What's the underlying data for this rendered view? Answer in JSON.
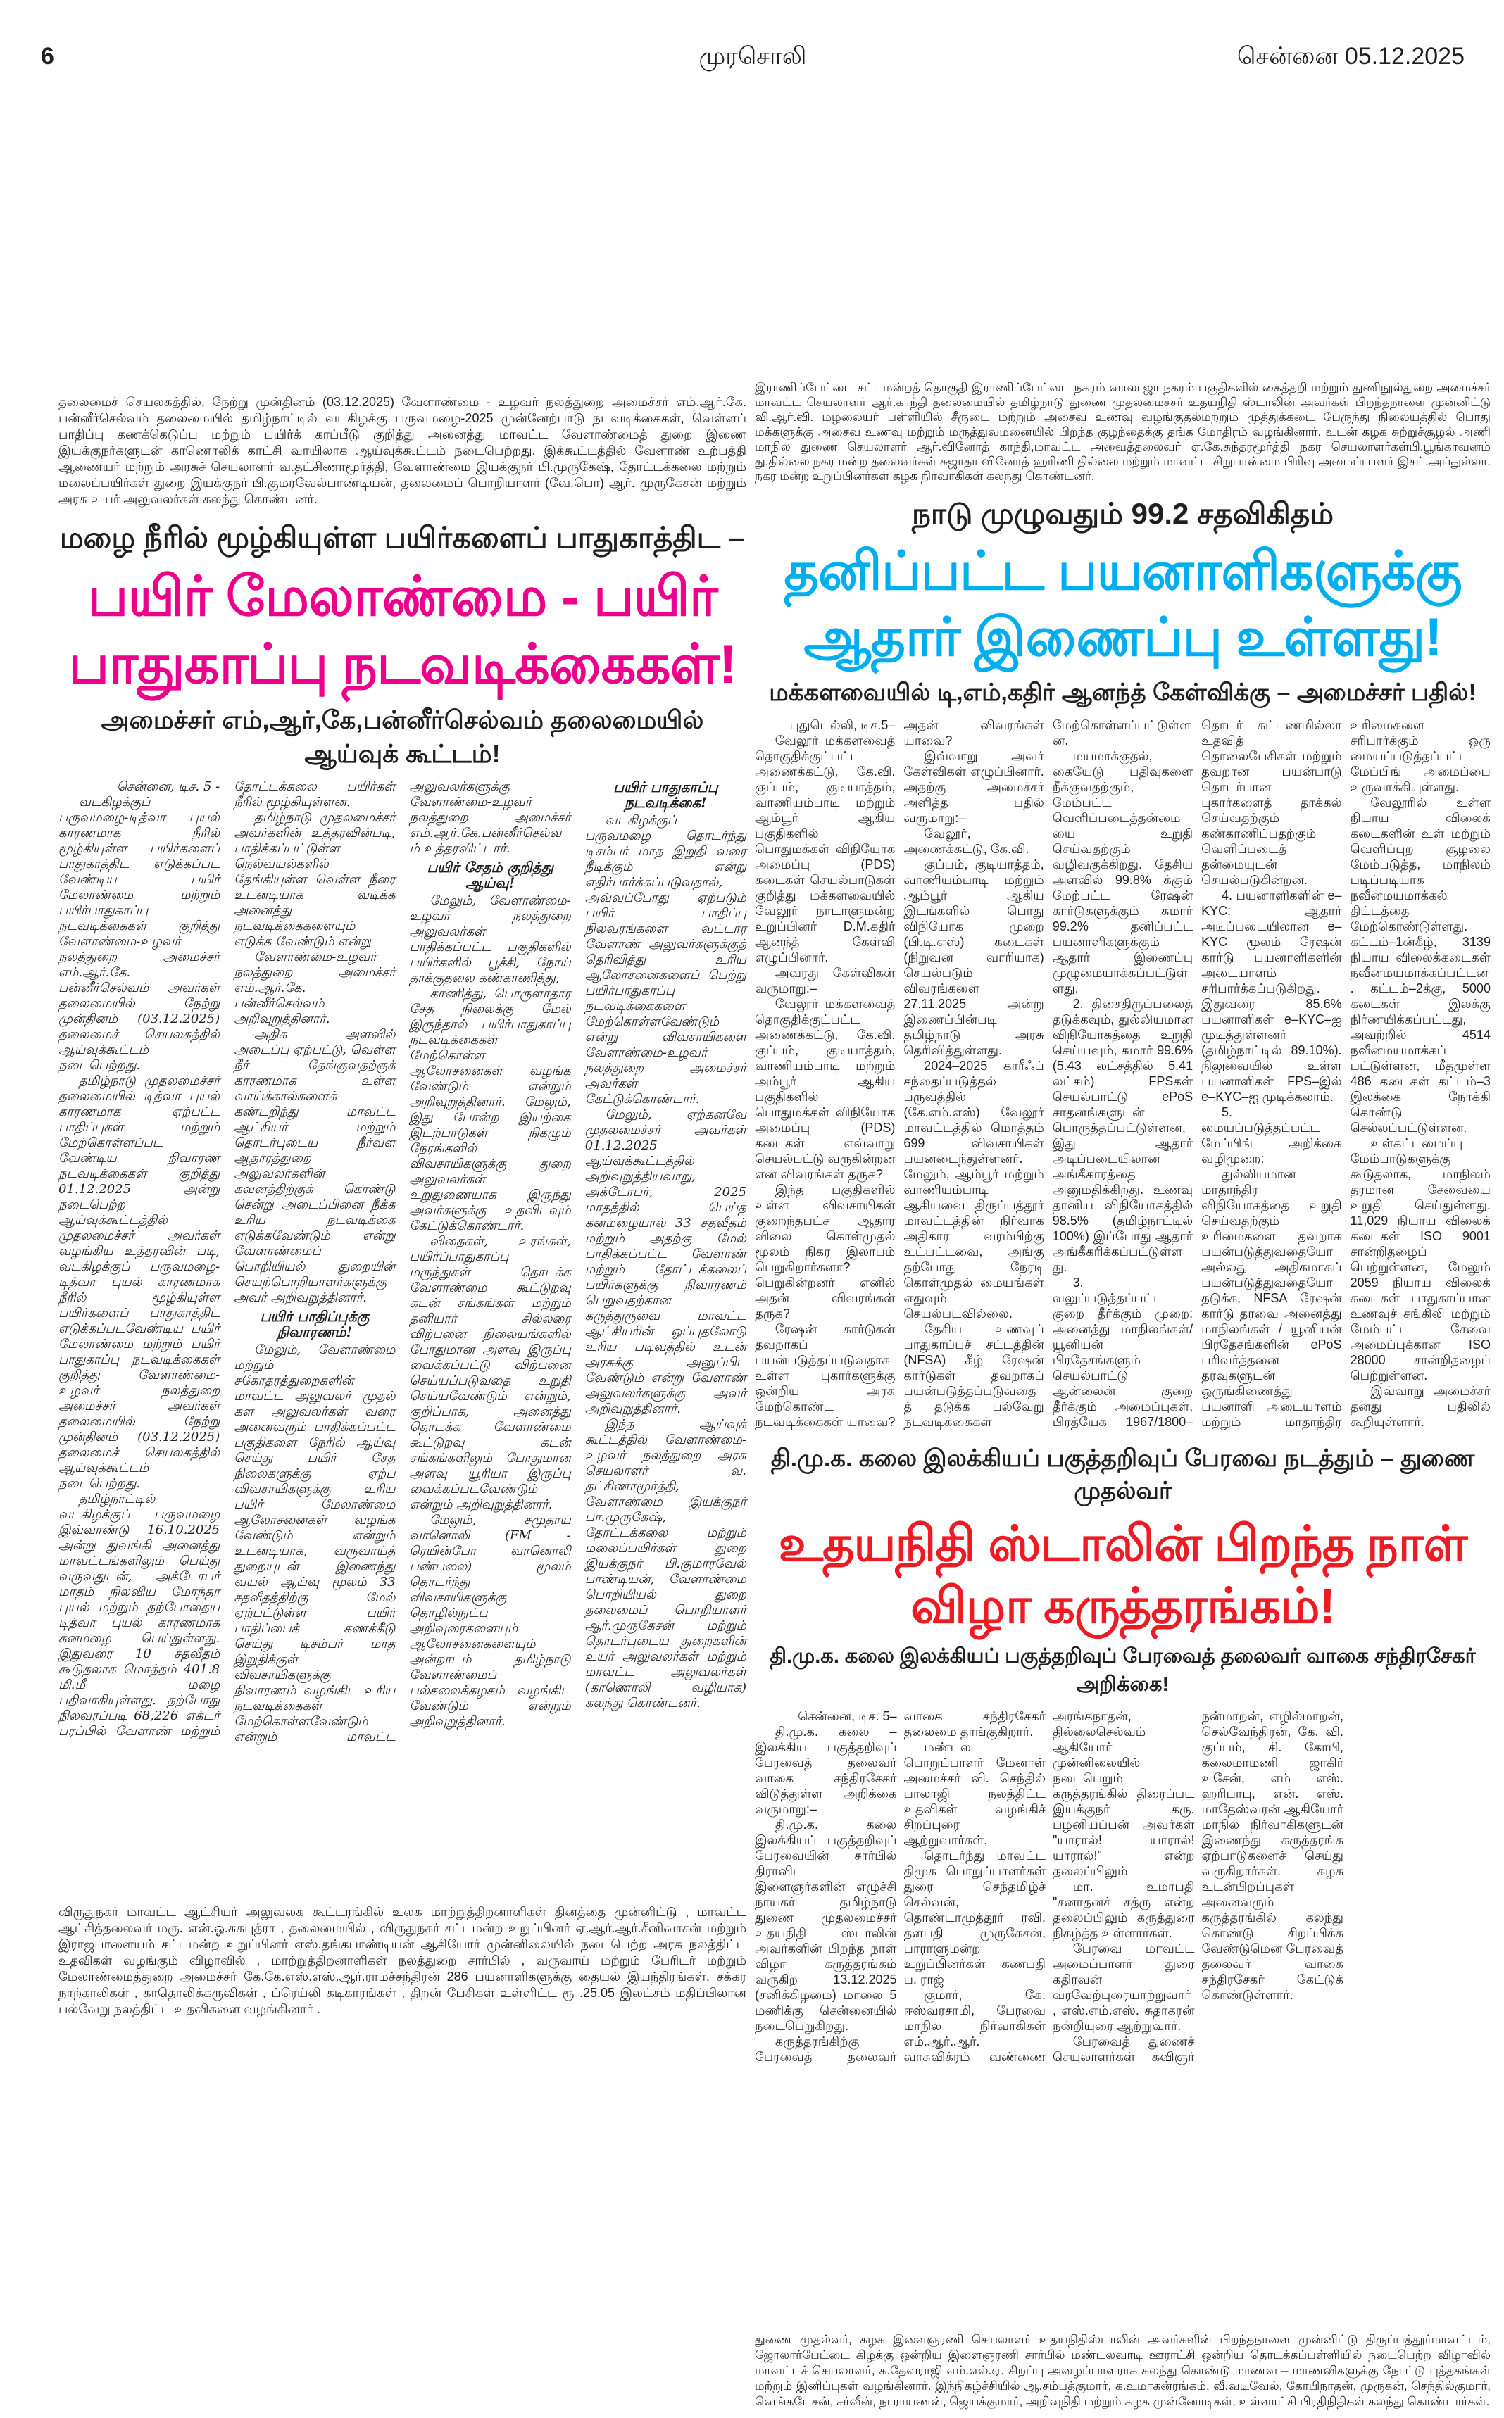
{
  "masthead": {
    "page_number": "6",
    "paper_name": "முரசொலி",
    "city": "சென்னை",
    "date": "05.12.2025"
  },
  "colors": {
    "pink": "#ec008c",
    "blue": "#00aeef",
    "red": "#ed1c24",
    "text": "#231f20"
  },
  "left_top_caption": "தலைமைச் செயலகத்தில், நேற்று முன்தினம் (03.12.2025) வேளாண்மை - உழவர் நலத்துறை அமைச்சர் எம்.ஆர்.கே. பன்னீர்செல்வம் தலைமையில் தமிழ்நாட்டில் வடகிழக்கு பருவமழை-2025 முன்னேற்பாடு நடவடிக்கைகள், வெள்ளப் பாதிப்பு கணக்கெடுப்பு மற்றும் பயிர்க் காப்பீடு குறித்து அனைத்து மாவட்ட வேளாண்மைத் துறை இணை இயக்குநர்களுடன் காணொலிக் காட்சி வாயிலாக ஆய்வுக்கூட்டம் நடைபெற்றது. இக்கூட்டத்தில் வேளாண் உற்பத்தி ஆணையர் மற்றும் அரசுச் செயலாளர் வ.தட்சிணாமூர்த்தி, வேளாண்மை இயக்குநர் பி.முருகேஷ், தோட்டக்கலை மற்றும் மலைப்பயிர்கள் துறை இயக்குநர் பி.குமரவேல்பாண்டியன், தலைமைப் பொறியாளர் (வே.பொ) ஆர். முருகேசன் மற்றும் அரசு உயர் அலுவலர்கள் கலந்து கொண்டனர்.",
  "left_article": {
    "kicker": "மழை நீரில் மூழ்கியுள்ள பயிர்களைப் பாதுகாத்திட –",
    "headline": "பயிர் மேலாண்மை - பயிர் பாதுகாப்பு நடவடிக்கைகள்!",
    "subhead": "அமைச்சர் எம்,ஆர்,கே,பன்னீர்செல்வம் தலைமையில் ஆய்வுக் கூட்டம்!",
    "dateline": "சென்னை, டிச. 5 -",
    "columns": [
      [
        "வடகிழக்குப் பருவமழை-டித்வா புயல் காரணமாக நீரில் மூழ்கியுள்ள பயிர்களைப் பாதுகாத்திட எடுக்கப்பட வேண்டிய பயிர் மேலாண்மை மற்றும் பயிர்பாதுகாப்பு நடவடிக்கைகள் குறித்து வேளாண்மை-உழவர் நலத்துறை அமைச்சர் எம்.ஆர்.கே. பன்னீர்செல்வம் அவர்கள் தலைமையில் நேற்று முன்தினம் (03.12.2025) தலைமைச் செயலகத்தில் ஆய்வுக்கூட்டம் நடைபெற்றது.",
        "தமிழ்நாடு முதலமைச்சர் தலைமையில் டித்வா புயல் காரணமாக ஏற்பட்ட பாதிப்புகள் மற்றும் மேற்கொள்ளப்பட வேண்டிய நிவாரண நடவடிக்கைகள் குறித்து 01.12.2025 அன்று நடைபெற்ற ஆய்வுக்கூட்டத்தில் முதலமைச்சர் அவர்கள் வழங்கிய உத்தரவின் படி, வடகிழக்குப் பருவமழை-டித்வா புயல் காரணமாக நீரில் மூழ்கியுள்ள பயிர்களைப் பாதுகாத்திட எடுக்கப்படவேண்டிய பயிர் மேலாண்மை மற்றும் பயிர் பாதுகாப்பு நடவடிக்கைகள் குறித்து வேளாண்மை-உழவர் நலத்துறை அமைச்சர் அவர்கள் தலைமையில் நேற்று முன்தினம் (03.12.2025) தலைமைச் செயலகத்தில் ஆய்வுக்கூட்டம் நடைபெற்றது.",
        "தமிழ்நாட்டில் வடகிழக்குப் பருவமழை இவ்வாண்டு 16.10.2025 அன்று துவங்கி அனைத்து மாவட்டங்களிலும் பெய்து வருவதுடன், அக்டோபர் மாதம் நிலவிய மோந்தா புயல் மற்றும் தற்போதைய டித்வா புயல் காரணமாக கனமழை பெய்துள்ளது. இதுவரை 10 சதவீதம் கூடுதலாக மொத்தம் 401.8 மி.மீ மழை பதிவாகியுள்ளது. தற்போது நிலவரப்படி 68,226 எக்டர் பரப்பில் வேளாண் மற்றும் தோட்டக்கலை பயிர்கள் நீரில் மூழ்கியுள்ளன.",
        "தமிழ்நாடு முதலமைச்சர் அவர்களின் உத்தரவின்படி, பாதிக்கப்பட்டுள்ள நெல்வயல்களில் தேங்கியுள்ள வெள்ள நீரை உடனடியாக வடிக்க அனைத்து நடவடிக்கைகளையும் எடுக்க வேண்டும் என்று"
      ],
      [
        "வேளாண்மை-உழவர் நலத்துறை அமைச்சர் எம்.ஆர்.கே. பன்னீர்செல்வம் அறிவுறுத்தினார்.",
        "அதிக அளவில் அடைப்பு ஏற்பட்டு, வெள்ள நீர் தேங்குவதற்குக் காரணமாக உள்ள வாய்க்கால்களைக் கண்டறிந்து மாவட்ட ஆட்சியர் மற்றும் தொடர்புடைய நீர்வள ஆதாரத்துறை அலுவலர்களின் கவனத்திற்குக் கொண்டு சென்று அடைப்பினை நீக்க உரிய நடவடிக்கை எடுக்கவேண்டும் என்று வேளாண்மைப் பொறியியல் துறையின் செயற்பொறியாளர்களுக்கு அவர் அறிவுறுத்தினார்.",
        "#பயிர் பாதிப்புக்கு நிவாரணம்!",
        "மேலும், வேளாண்மை மற்றும் சகோதரத்துறைகளின் மாவட்ட அலுவலர் முதல் கள அலுவலர்கள் வரை அனைவரும் பாதிக்கப்பட்ட பகுதிகளை நேரில் ஆய்வு செய்து பயிர் சேத நிலைகளுக்கு ஏற்ப விவசாயிகளுக்கு உரிய பயிர் மேலாண்மை ஆலோசனைகள் வழங்க வேண்டும் என்றும் உடனடியாக, வருவாய்த் துறையுடன் இணைந்து வயல் ஆய்வு மூலம் 33 சதவீதத்திற்கு மேல் ஏற்பட்டுள்ள பயிர் பாதிப்பைக் கணக்கீடு செய்து டிசம்பர் மாத இறுதிக்குள் விவசாயிகளுக்கு நிவாரணம் வழங்கிட உரிய நடவடிக்கைகள் மேற்கொள்ளவேண்டும் என்றும் மாவட்ட அலுவலர்களுக்கு வேளாண்மை-உழவர் நலத்துறை அமைச்சர் எம்.ஆர்.கே.பன்னீர்செல்வம் உத்தரவிட்டார்.",
        "#பயிர் சேதம் குறித்து ஆய்வு!",
        "மேலும், வேளாண்மை-உழவர் நலத்துறை அலுவலர்கள் பாதிக்கப்பட்ட பகுதிகளில் பயிர்களில் பூச்சி, நோய் தாக்குதலை கண்காணித்து,"
      ],
      [
        "காணித்து, பொருளாதார சேத நிலைக்கு மேல் இருந்தால் பயிர்பாதுகாப்பு நடவடிக்கைகள் மேற்கொள்ள ஆலோசனைகள் வழங்க வேண்டும் என்றும் அறிவுறுத்தினார். மேலும், இது போன்ற இயற்கை இடற்பாடுகள் நிகழும் நேரங்களில் விவசாயிகளுக்கு துறை அலுவலர்கள் உறுதுணையாக இருந்து அவர்களுக்கு உதவிடவும் கேட்டுக்கொண்டார்.",
        "விதைகள், உரங்கள், பயிர்ப்பாதுகாப்பு மருந்துகள் தொடக்க வேளாண்மை கூட்டுறவு கடன் சங்கங்கள் மற்றும் தனியார் சில்லரை விற்பனை நிலையங்களில் போதுமான அளவு இருப்பு வைக்கப்பட்டு விற்பனை செய்யப்படுவதை உறுதி செய்யவேண்டும் என்றும், குறிப்பாக, அனைத்து தொடக்க வேளாண்மை கூட்டுறவு கடன் சங்கங்களிலும் போதுமான அளவு யூரியா இருப்பு வைக்கப்படவேண்டும் என்றும் அறிவுறுத்தினார்."
      ],
      [
        "மேலும், சமுதாய வானொலி (FM - ரெயின்போ வானொலி பண்பலை) மூலம் தொடர்ந்து விவசாயிகளுக்கு தொழில்நுட்ப அறிவுரைகளையும் ஆலோசனைகளையும் அன்றாடம் தமிழ்நாடு வேளாண்மைப் பல்கலைக்கழகம் வழங்கிட வேண்டும் என்றும் அறிவுறுத்தினார்.",
        "#பயிர் பாதுகாப்பு நடவடிக்கை!",
        "வடகிழக்குப் பருவமழை தொடர்ந்து டிசம்பர் மாத இறுதி வரை நீடிக்கும் என்று எதிர்பார்க்கப்படுவதால், அவ்வப்போது ஏற்படும் பயிர் பாதிப்பு நிலவரங்களை வட்டார வேளாண் அலுவர்களுக்குத் தெரிவித்து உரிய ஆலோசனைகளைப் பெற்று பயிர்பாதுகாப்பு நடவடிக்கைகளை மேற்கொள்ளவேண்டும் என்று விவசாயிகளை வேளாண்மை-உழவர் நலத்துறை அமைச்சர் அவர்கள் கேட்டுக்கொண்டார்.",
        "மேலும், ஏற்கனவே முதலமைச்சர் அவர்கள் 01.12.2025 ஆய்வுக்கூட்டத்தில் அறிவுறுத்தியவாறு, அக்டோபர், 2025 மாதத்தில் பெய்த கனமழையால் 33 சதவீதம் மற்றும் அதற்கு மேல் பாதிக்கப்பட்ட வேளாண் மற்றும் தோட்டக்கலைப் பயிர்களுக்கு நிவாரணம் பெறுவதற்கான கருத்துருவை மாவட்ட ஆட்சியரின் ஒப்புதலோடு உரிய படிவத்தில் உடன் அரசுக்கு அனுப்பிட வேண்டும் என்று வேளாண் அலுவலர்களுக்கு அவர் அறிவுறுத்தினார்.",
        "இந்த ஆய்வுக் கூட்டத்தில் வேளாண்மை-உழவர் நலத்துறை அரசு செயலாளர் வ. தட்சிணாமூர்த்தி, வேளாண்மை இயக்குநர் பா.முருகேஷ், தோட்டக்கலை மற்றும் மலைப்பயிர்கள் துறை இயக்குநர் பி.குமாரவேல் பாண்டியன், வேளாண்மை பொறியியல் துறை தலைமைப் பொறியாளர் ஆர்.முருகேசன் மற்றும் தொடர்புடைய துறைகளின் உயர் அலுவலர்கள் மற்றும் மாவட்ட அலுவலர்கள் (காணொலி வழியாக) கலந்து கொண்டனர்."
      ]
    ]
  },
  "left_bottom_caption": "விருதுநகர் மாவட்ட ஆட்சியர் அலுவலக கூட்டரங்கில் உலக மாற்றுத்திறனாளிகள் தினத்தை முன்னிட்டு , மாவட்ட ஆட்சித்தலைவர் மரு. என்.ஓ.சுகபுத்ரா , தலைமையில் , விருதுநகர் சட்டமன்ற உறுப்பினர் ஏ.ஆர்.ஆர்.சீனிவாசன் மற்றும் இராஜபாளையம் சட்டமன்ற உறுப்பினர் எஸ்.தங்கபாண்டியன் ஆகியோர் முன்னிலையில் நடைபெற்ற அரசு நலத்திட்ட உதவிகள் வழங்கும் விழாவில் , மாற்றுத்திறனாளிகள் நலத்துறை சார்பில் , வருவாய் மற்றும் பேரிடர் மற்றும் மேலாண்மைத்துறை அமைச்சர் கே.கே.எஸ்.எஸ்.ஆர்.ராமச்சந்திரன் 286 பயனாளிகளுக்கு தையல் இயந்திரங்கள், சக்கர நாற்காலிகள் , காதொலிக்கருவிகள் , ப்ரெய்லி கடிகாரங்கள் , திறன் பேசிகள் உள்ளிட்ட ரூ .25.05 இலட்சம் மதிப்பிலான பல்வேறு நலத்திட்ட உதவிகளை வழங்கினார் .",
  "right_top_caption": "இராணிப்பேட்டை சட்டமன்றத் தொகுதி இராணிப்பேட்டை நகரம் வாலாஜா நகரம் பகுதிகளில் கைத்தறி மற்றும் துணிநூல்துறை அமைச்சர் மாவட்ட செயலாளர் ஆர்.காந்தி தலைமையில் தமிழ்நாடு துணை முதலமைச்சர் உதயநிதி ஸ்டாலின் அவர்கள் பிறந்தநாளை முன்னிட்டு வி.ஆர்.வி. மழலையர் பள்ளியில் சீருடை மற்றும் அசைவ உணவு வழங்குதல்மற்றும் முத்துக்கடை பேருந்து நிலையத்தில் பொது மக்களுக்கு அசைவ உணவு மற்றும் மருத்துவமனையில் பிறந்த குழந்தைக்கு தங்க மோதிரம் வழங்கினார். உடன் கழக சுற்றுச்சூழல் அணி மாநில துணை செயலாளர் ஆர்.வினோத் காந்தி,மாவட்ட அவைத்தலைவர் ஏ.கே.சுந்தரமூர்த்தி நகர செயலாளர்கள்பி.பூங்காவனம் து.தில்லை நகர மன்ற தலைவர்கள் சுஜாதா வினோத் ஹரிணி தில்லை மற்றும் மாவட்ட சிறுபான்மை பிரிவு அமைப்பாளர் இசட்.அப்துல்லா. நகர மன்ற உறுப்பினர்கள் கழக நிர்வாகிகள் கலந்து கொண்டனர்.",
  "right_article": {
    "kicker": "நாடு முழுவதும் 99.2 சதவிகிதம்",
    "headline": "தனிப்பட்ட பயனாளிகளுக்கு ஆதார் இணைப்பு உள்ளது!",
    "subhead": "மக்களவையில் டி,எம்,கதிர் ஆனந்த் கேள்விக்கு – அமைச்சர் பதில்!",
    "dateline": "புதுடெல்லி, டிச.5–",
    "columns": [
      [
        "வேலூர் மக்களவைத் தொகுதிக்குட்பட்ட அணைக்கட்டு, கே.வி. குப்பம், குடியாத்தம், வாணியம்பாடி மற்றும் ஆம்பூர் ஆகிய பகுதிகளில் பொதுமக்கள் விநியோக அமைப்பு (PDS) கடைகள் செயல்பாடுகள் குறித்து மக்களவையில் வேலூர் நாடாளுமன்ற உறுப்பினர் D.M.கதிர் ஆனந்த் கேள்வி எழுப்பினார்.",
        "அவரது கேள்விகள் வருமாறு:–",
        "வேலூர் மக்களவைத் தொகுதிக்குட்பட்ட அணைக்கட்டு, கே.வி. குப்பம், குடியாத்தம், வாணியம்பாடி மற்றும் அம்பூர் ஆகிய பகுதிகளில் பொதுமக்கள் விநியோக அமைப்பு (PDS) கடைகள் எவ்வாறு செயல்பட்டு வருகின்றன என விவரங்கள் தருக?",
        "இந்த பகுதிகளில் உள்ள விவசாயிகள் குறைந்தபட்ச ஆதார விலை கொள்முதல் மூலம் நிகர இலாபம் பெறுகிறார்களா? பெறுகின்றனர் எனில் அதன் விவரங்கள் தருக?",
        "ரேஷன் கார்டுகள் தவறாகப் பயன்படுத்தப்படுவதாக உள்ள புகார்களுக்கு ஒன்றிய அரசு மேற்கொண்ட நடவடிக்கைகள் யாவை? அதன் விவரங்கள் யாவை?",
        "இவ்வாறு அவர் கேள்விகள் எழுப்பினார். அதற்கு அமைச்சர் அளித்த பதில் வருமாறு:–",
        "வேலூர், அணைக்கட்டு, கே.வி."
      ],
      [
        "குப்பம், குடியாத்தம், வாணியம்பாடி மற்றும் ஆம்பூர் ஆகிய இடங்களில் பொது விநியோக முறை (பி.டி.எஸ்) கடைகள் (நிறுவன வாரியாக) செயல்படும் விவரங்களை 27.11.2025 அன்று இணைப்பின்படி தமிழ்நாடு அரசு தெரிவித்துள்ளது.",
        "2024–2025 காரீஃப் சந்தைப்படுத்தல் பருவத்தில் (கே.எம்.எஸ்) வேலூர் மாவட்டத்தில் மொத்தம் 699 விவசாயிகள் பயனடைந்துள்ளனர். மேலும், ஆம்பூர் மற்றும் வாணியம்பாடி ஆகியவை திருப்பத்தூர் மாவட்டத்தின் நிர்வாக அதிகார வரம்பிற்கு உட்பட்டவை, அங்கு தற்போது நேரடி கொள்முதல் மையங்கள் எதுவும் செயல்படவில்லை.",
        "தேசிய உணவுப் பாதுகாப்புச் சட்டத்தின் (NFSA) கீழ் ரேஷன் கார்டுகள் தவறாகப் பயன்படுத்தப்படுவதைத் தடுக்க பல்வேறு நடவடிக்கைகள் மேற்கொள்ளப்பட்டுள்ளன."
      ],
      [
        "மயமாக்குதல், கையேடு பதிவுகளை நீக்குவதற்கும், மேம்பட்ட வெளிப்படைத்தன்மையை உறுதி செய்வதற்கும் வழிவகுக்கிறது. தேசிய அளவில் 99.8% க்கும் மேற்பட்ட ரேஷன் கார்டுகளுக்கும் சுமார் 99.2% தனிப்பட்ட பயனாளிகளுக்கும் ஆதார் இணைப்பு முழுமையாக்கப்பட்டுள்ளது.",
        "2. திசைதிருப்பலைத் தடுக்கவும், துல்லியமான விநியோகத்தை உறுதி செய்யவும், சுமார் 99.6% (5.43 லட்சத்தில் 5.41 லட்சம்) FPSகள் செயல்பாட்டு ePoS சாதனங்களுடன் பொருத்தப்பட்டுள்ளன, இது ஆதார் அடிப்படையிலான அங்கீகாரத்தை அனுமதிக்கிறது. உணவு தானிய விநியோகத்தில் 98.5% (தமிழ்நாட்டில் 100%) இப்போது ஆதார் அங்கீகரிக்கப்பட்டுள்ளது.",
        "3. வலுப்படுத்தப்பட்ட குறை தீர்க்கும் முறை: அனைத்து மாநிலங்கள்/யூனியன் பிரதேசங்களும் செயல்பாட்டு ஆன்லைன் குறை தீர்க்கும் அமைப்புகள், பிரத்யேக 1967/1800–தொடர் கட்டணமில்லா உதவித் தொலைபேசிகள் மற்றும் தவறான பயன்பாடு தொடர்பான புகார்களைத் தாக்கல் செய்வதற்கும் கண்காணிப்பதற்கும் வெளிப்படைத் தன்மையுடன் செயல்படுகின்றன."
      ],
      [
        "4. பயனாளிகளின் e–KYC: ஆதார் அடிப்படையிலான e–KYC மூலம் ரேஷன் கார்டு பயனாளிகளின் அடையாளம் சரிபார்க்கப்படுகிறது. இதுவரை 85.6% பயனாளிகள் e–KYC–ஐ முடித்துள்ளனர் (தமிழ்நாட்டில் 89.10%). நிலுவையில் உள்ள பயனாளிகள் FPS–இல் e–KYC–ஐ முடிக்கலாம்."
      ],
      [
        "5. மையப்படுத்தப்பட்ட மேப்பிங் அறிக்கை வழிமுறை:",
        "துல்லியமான மாதாந்திர விநியோகத்தை உறுதி செய்வதற்கும் உரிமைகளை தவறாக பயன்படுத்துவதையோ அல்லது அதிகமாகப் பயன்படுத்துவதையோ தடுக்க, NFSA ரேஷன் கார்டு தரவை அனைத்து மாநிலங்கள் / யூனியன் பிரதேசங்களின் ePoS பரிவர்த்தனை தரவுகளுடன் ஒருங்கிணைத்து பயனாளி அடையாளம் மற்றும் மாதாந்திர உரிமைகளை சரிபார்க்கும் ஒரு மையப்படுத்தப்பட்ட மேப்பிங் அமைப்பை உருவாக்கியுள்ளது.",
        "வேலூரில் உள்ள நியாய விலைக் கடைகளின் உள் மற்றும் வெளிப்புற சூழலை மேம்படுத்த, மாநிலம் படிப்படியாக நவீனமயமாக்கல் திட்டத்தை மேற்கொண்டுள்ளது. கட்டம்–1ன்கீழ், 3139 நியாய விலைக்கடைகள் நவீனமயமாக்கப்பட்டன. கட்டம்–2க்கு, 5000 கடைகள் இலக்கு நிர்ணயிக்கப்பட்டது, அவற்றில் 4514 நவீனமயமாக்கப் பட்டுள்ளன, மீதமுள்ள 486 கடைகள் கட்டம்–3 இலக்கை நோக்கி கொண்டு செல்லப்பட்டுள்ளன.",
        "உள்கட்டமைப்பு மேம்பாடுகளுக்கு கூடுதலாக, மாநிலம் தரமான சேவையை உறுதி செய்துள்ளது. 11,029 நியாய விலைக் கடைகள் ISO 9001 சான்றிதழைப் பெற்றுள்ளன, மேலும் 2059 நியாய விலைக் கடைகள் பாதுகாப்பான உணவுச் சங்கிலி மற்றும் மேம்பட்ட சேவை அமைப்புக்கான ISO 28000 சான்றிதழைப் பெற்றுள்ளன.",
        "இவ்வாறு அமைச்சர் தனது பதிலில் கூறியுள்ளார்."
      ]
    ]
  },
  "bottom_right_article": {
    "kicker": "தி.மு.க. கலை இலக்கியப் பகுத்தறிவுப் பேரவை நடத்தும் – துணை முதல்வர்",
    "headline": "உதயநிதி ஸ்டாலின் பிறந்த நாள் விழா கருத்தரங்கம்!",
    "subhead": "தி.மு.க. கலை இலக்கியப் பகுத்தறிவுப் பேரவைத் தலைவர் வாகை சந்திரசேகர் அறிக்கை!",
    "dateline": "சென்னை, டிச. 5–",
    "columns": [
      [
        "தி.மு.க. கலை – இலக்கிய பகுத்தறிவுப் பேரவைத் தலைவர் வாகை சந்திரசேகர் விடுத்துள்ள அறிக்கை வருமாறு:–",
        "தி.மு.க. கலை இலக்கியப் பகுத்தறிவுப் பேரவையின் சார்பில் திராவிட இளைஞர்களின் எழுச்சி நாயகர் தமிழ்நாடு துணை முதலமைச்சர் உதயநிதி ஸ்டாலின் அவர்களின் பிறந்த நாள் விழா கருத்தரங்கம் வருகிற 13.12.2025 (சனிக்கிழமை) மாலை 5 மணிக்கு சென்னையில் நடைபெறுகிறது.",
        "கருத்தரங்கிற்கு பேரவைத் தலைவர் வாகை சந்திரசேகர் தலைமை தாங்குகிறார்.",
        "மண்டல பொறுப்பாளர் மேனாள் அமைச்சர் வி. செந்தில் பாலாஜி நலத்திட்ட உதவிகள் வழங்கிச் சிறப்புரை ஆற்றுவார்கள்.",
        "தொடர்ந்து மாவட்ட திமுக பொறுப்பாளர்கள் துரை செந்தமிழ்ச் செல்வன், தொண்டாமுத்தூர் ரவி, தளபதி முருகேசன், பாராளுமன்ற உறுப்பினர்கள் கணபதி ப. ராஜ்"
      ],
      [
        "குமார், கே. ஈஸ்வரசாமி, பேரவை மாநில நிர்வாகிகள் எம்.ஆர்.ஆர். வாசுவிக்ரம் வண்ணை அரங்கநாதன், தில்லைசெல்வம் ஆகியோர் முன்னிலையில் நடைபெறும் கருத்தரங்கில் திரைப்பட இயக்குநர் கரு. பழனியப்பன் அவர்கள் \"யாரால்! யாரால்! யாரால்!\" என்ற தலைப்பிலும்"
      ],
      [
        "மா. உமாபதி \"சனாதனச் சத்ரு என்ற தலைப்பிலும் கருத்துரை நிகழ்த்த உள்ளார்கள்.",
        "பேரவை மாவட்ட அமைப்பாளர் துரை கதிரவன் வரவேற்புரையாற்றுவார், எஸ்.எம்.எஸ். சுதாகரன் நன்றியுரை ஆற்றுவார்."
      ],
      [
        "பேரவைத் துணைச் செயலாளர்கள் கவிஞர் நன்மாறன், எழில்மாறன், செல்வேந்திரன், கே. வி. குப்பம், சி. கோபி, கலைமாமணி ஜாகிர் உசேன், எம் எஸ். ஹரிபாபு, என். எஸ். மாதேஸ்வரன் ஆகியோர் மாநில நிர்வாகிகளுடன் இணைந்து கருத்தரங்க ஏற்பாடுகளைச் செய்து வருகிறார்கள். கழக உடன்பிறப்புகள் அனைவரும் கருத்தரங்கில் கலந்து கொண்டு சிறப்பிக்க வேண்டுமென பேரவைத் தலைவர் வாகை சந்திரசேகர் கேட்டுக் கொண்டுள்ளார்."
      ]
    ]
  },
  "right_bottom_caption": "துணை முதல்வர், கழக இளைஞரணி செயலாளர் உதயநிதிஸ்டாலின் அவர்களின் பிறந்தநாளை முன்னிட்டு திருப்பத்தூர்மாவட்டம், ஜோலார்பேட்டை கிழக்கு ஒன்றிய இளைஞரணி சார்பில் மண்டலவாடி ஊராட்சி ஒன்றிய தொடக்கப்பள்ளியில் நடைபெற்ற விழாவில் மாவட்டச் செயலாளர், க.தேவராஜி எம்.எல்.ஏ. சிறப்பு அழைப்பாளராக கலந்து கொண்டு மாணவ – மாணவிகளுக்கு நோட்டு புத்தகங்கள் மற்றும் இனிப்புகள் வழங்கினார். இந்நிகழ்ச்சியில் ஆ.சம்பத்குமார், க.உமாகன்ரங்கம், வீ.வடிவேல், கோபிநாதன், முருகன், செந்தில்குமார், வெங்கடேசன், சர்வீன், நாராயணன், ஜெயக்குமார், அறிவுநிதி மற்றும் கழக முன்னோடிகள், உள்ளாட்சி பிரதிநிதிகள் கலந்து கொண்டார்கள்."
}
